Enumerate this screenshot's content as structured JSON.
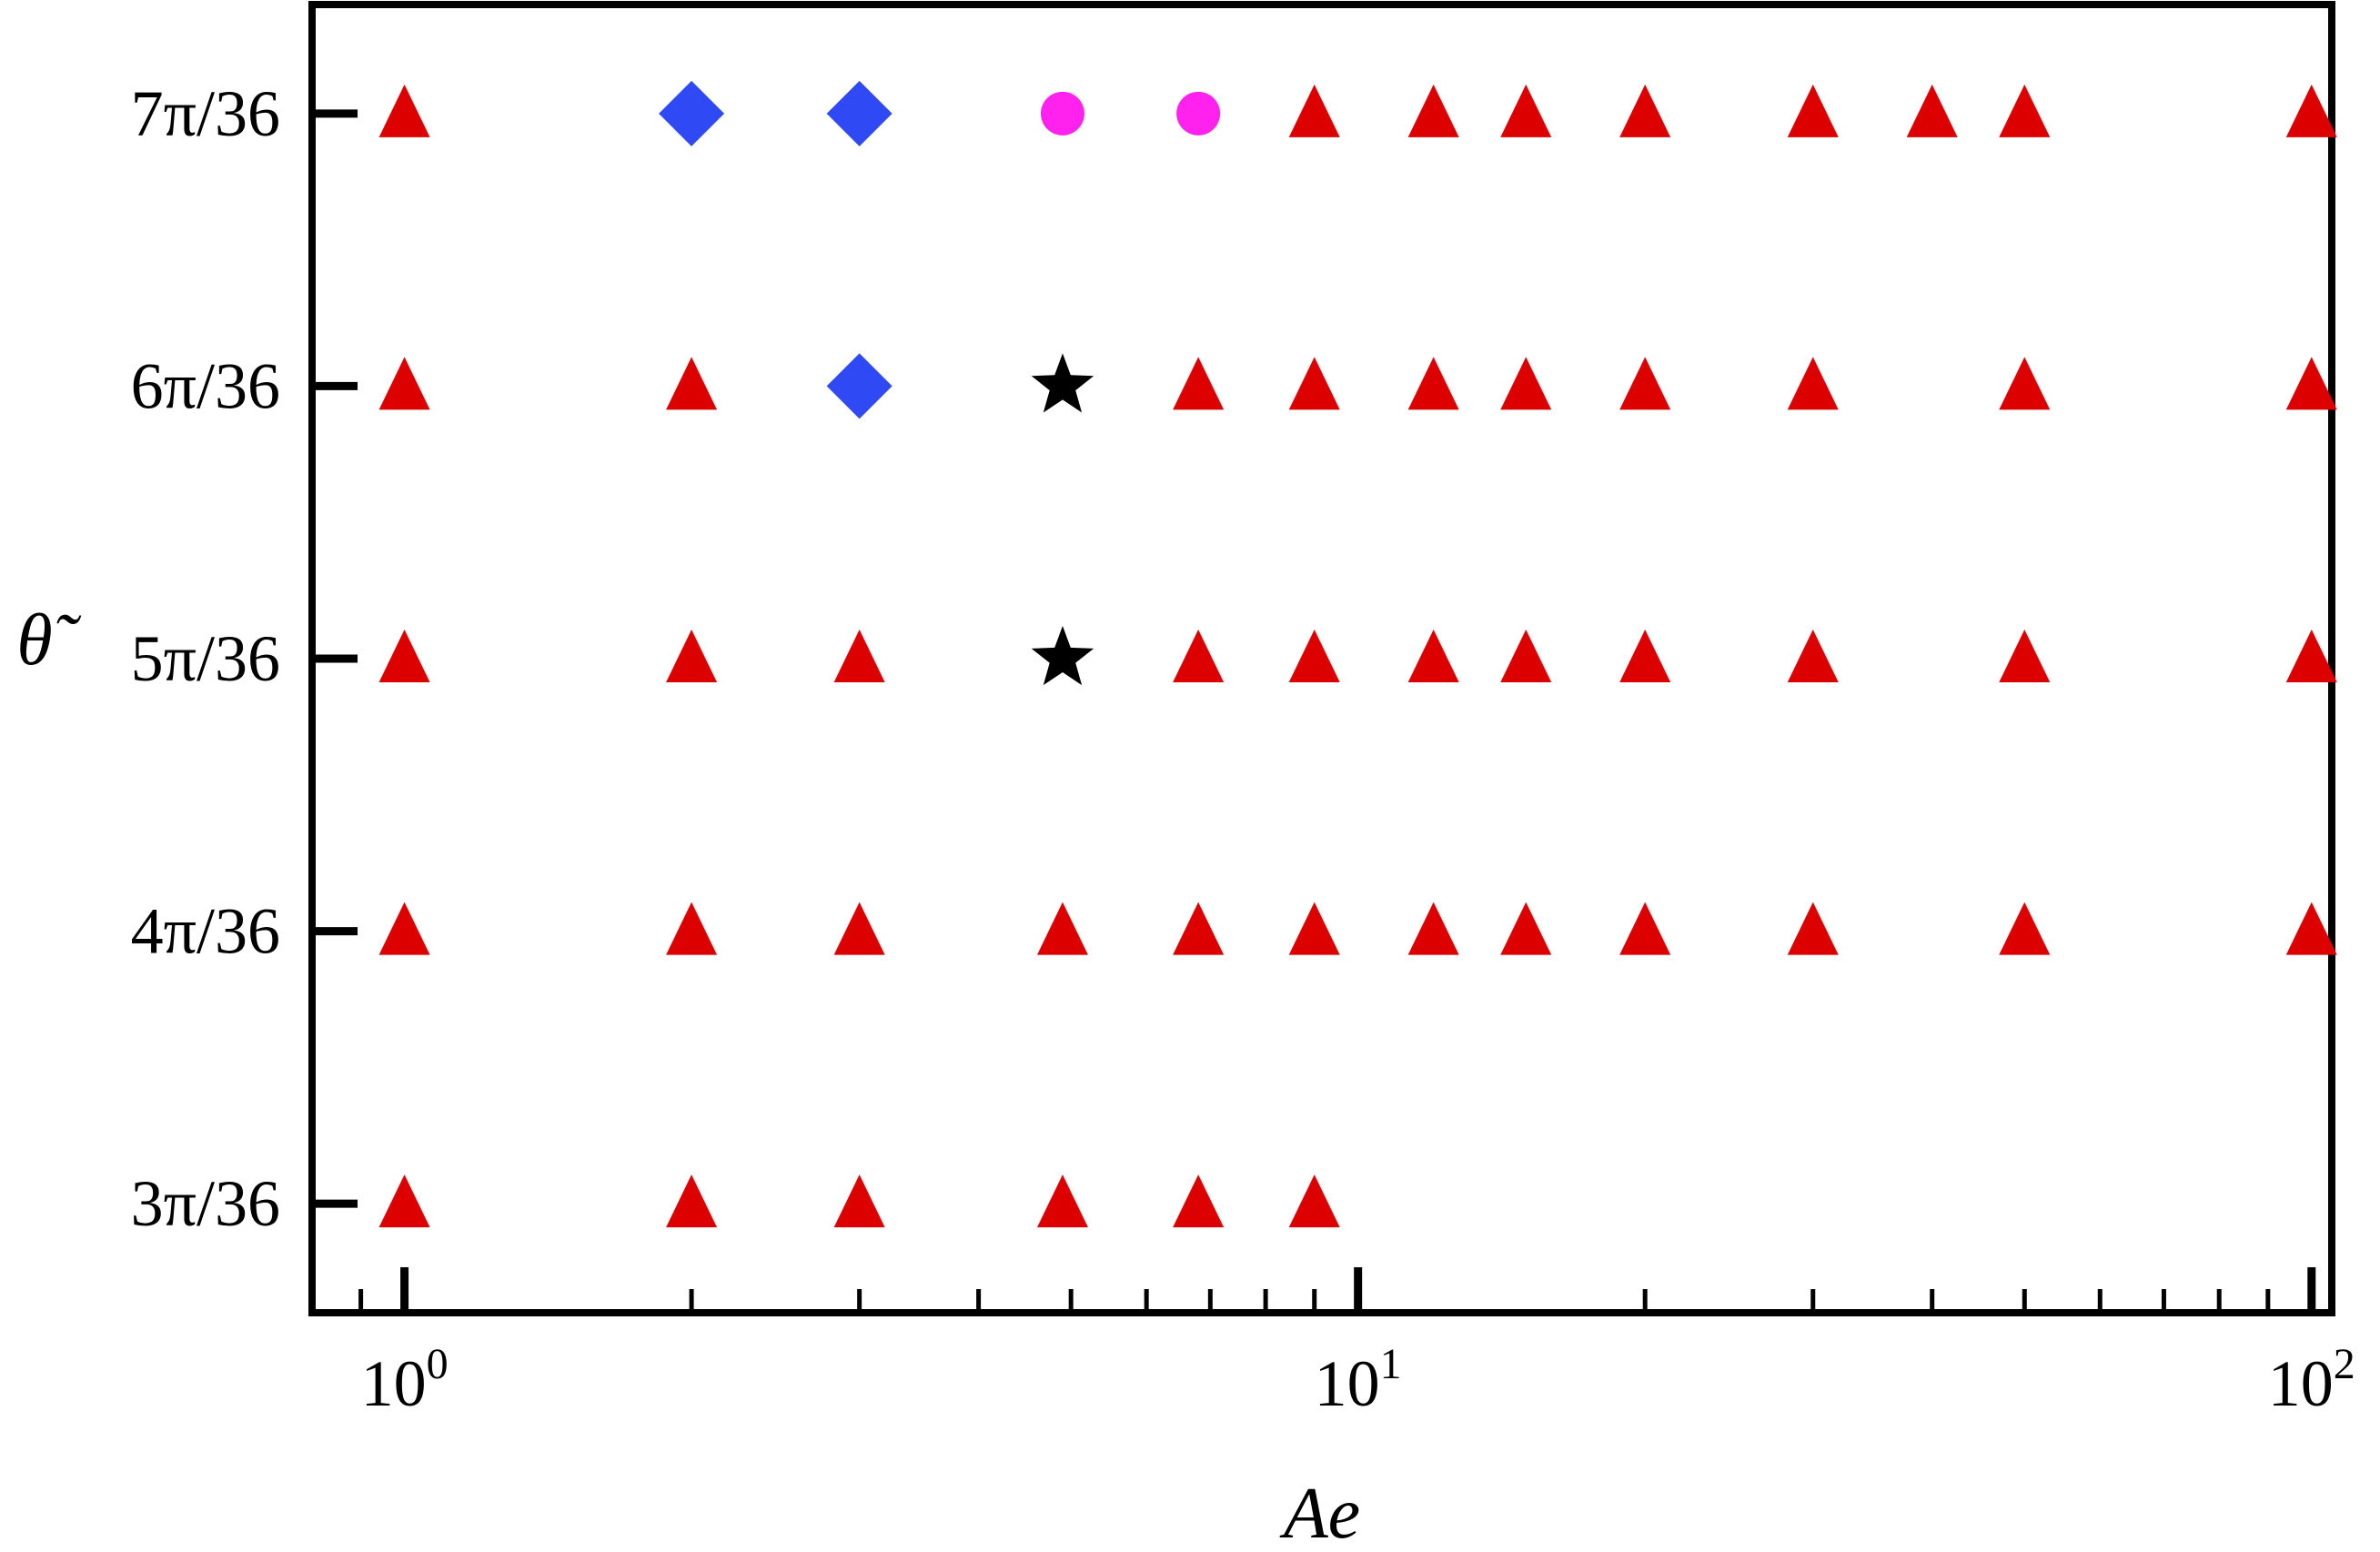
{
  "chart_data": {
    "type": "scatter",
    "title": "",
    "xlabel": "Ae",
    "ylabel": "θ̃",
    "x_scale": "log",
    "xlim": [
      0.8,
      105
    ],
    "x_ticks": [
      {
        "value": 1,
        "base": "10",
        "exp": "0"
      },
      {
        "value": 10,
        "base": "10",
        "exp": "1"
      },
      {
        "value": 100,
        "base": "10",
        "exp": "2"
      }
    ],
    "y_ticks": [
      {
        "value": 3,
        "label": "3π/36"
      },
      {
        "value": 4,
        "label": "4π/36"
      },
      {
        "value": 5,
        "label": "5π/36"
      },
      {
        "value": 6,
        "label": "6π/36"
      },
      {
        "value": 7,
        "label": "7π/36"
      }
    ],
    "ylim": [
      2.6,
      7.4
    ],
    "y_unit": "π/36",
    "grid": false,
    "legend": "none",
    "series": [
      {
        "marker": "triangle",
        "color": "#dd0000",
        "points": [
          {
            "x": 1,
            "y": 3
          },
          {
            "x": 2,
            "y": 3
          },
          {
            "x": 3,
            "y": 3
          },
          {
            "x": 4.9,
            "y": 3
          },
          {
            "x": 6.8,
            "y": 3
          },
          {
            "x": 9,
            "y": 3
          },
          {
            "x": 1,
            "y": 4
          },
          {
            "x": 2,
            "y": 4
          },
          {
            "x": 3,
            "y": 4
          },
          {
            "x": 4.9,
            "y": 4
          },
          {
            "x": 6.8,
            "y": 4
          },
          {
            "x": 9,
            "y": 4
          },
          {
            "x": 12,
            "y": 4
          },
          {
            "x": 15,
            "y": 4
          },
          {
            "x": 20,
            "y": 4
          },
          {
            "x": 30,
            "y": 4
          },
          {
            "x": 50,
            "y": 4
          },
          {
            "x": 100,
            "y": 4
          },
          {
            "x": 1,
            "y": 5
          },
          {
            "x": 2,
            "y": 5
          },
          {
            "x": 3,
            "y": 5
          },
          {
            "x": 6.8,
            "y": 5
          },
          {
            "x": 9,
            "y": 5
          },
          {
            "x": 12,
            "y": 5
          },
          {
            "x": 15,
            "y": 5
          },
          {
            "x": 20,
            "y": 5
          },
          {
            "x": 30,
            "y": 5
          },
          {
            "x": 50,
            "y": 5
          },
          {
            "x": 100,
            "y": 5
          },
          {
            "x": 1,
            "y": 6
          },
          {
            "x": 2,
            "y": 6
          },
          {
            "x": 6.8,
            "y": 6
          },
          {
            "x": 9,
            "y": 6
          },
          {
            "x": 12,
            "y": 6
          },
          {
            "x": 15,
            "y": 6
          },
          {
            "x": 20,
            "y": 6
          },
          {
            "x": 30,
            "y": 6
          },
          {
            "x": 50,
            "y": 6
          },
          {
            "x": 100,
            "y": 6
          },
          {
            "x": 1,
            "y": 7
          },
          {
            "x": 9,
            "y": 7
          },
          {
            "x": 12,
            "y": 7
          },
          {
            "x": 15,
            "y": 7
          },
          {
            "x": 20,
            "y": 7
          },
          {
            "x": 30,
            "y": 7
          },
          {
            "x": 40,
            "y": 7
          },
          {
            "x": 50,
            "y": 7
          },
          {
            "x": 100,
            "y": 7
          }
        ]
      },
      {
        "marker": "diamond",
        "color": "#2f49f5",
        "points": [
          {
            "x": 2,
            "y": 7
          },
          {
            "x": 3,
            "y": 7
          },
          {
            "x": 3,
            "y": 6
          }
        ]
      },
      {
        "marker": "circle",
        "color": "#ff22ee",
        "points": [
          {
            "x": 4.9,
            "y": 7
          },
          {
            "x": 6.8,
            "y": 7
          }
        ]
      },
      {
        "marker": "star",
        "color": "#000000",
        "points": [
          {
            "x": 4.9,
            "y": 6
          },
          {
            "x": 4.9,
            "y": 5
          }
        ]
      }
    ]
  }
}
